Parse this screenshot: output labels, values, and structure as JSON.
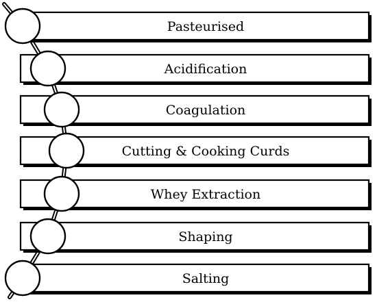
{
  "diagram": {
    "steps": [
      {
        "label": "Pasteurised"
      },
      {
        "label": "Acidification"
      },
      {
        "label": "Coagulation"
      },
      {
        "label": "Cutting & Cooking Curds"
      },
      {
        "label": "Whey Extraction"
      },
      {
        "label": "Shaping"
      },
      {
        "label": "Salting"
      }
    ],
    "colors": {
      "stroke": "#000000",
      "fill": "#ffffff"
    }
  }
}
